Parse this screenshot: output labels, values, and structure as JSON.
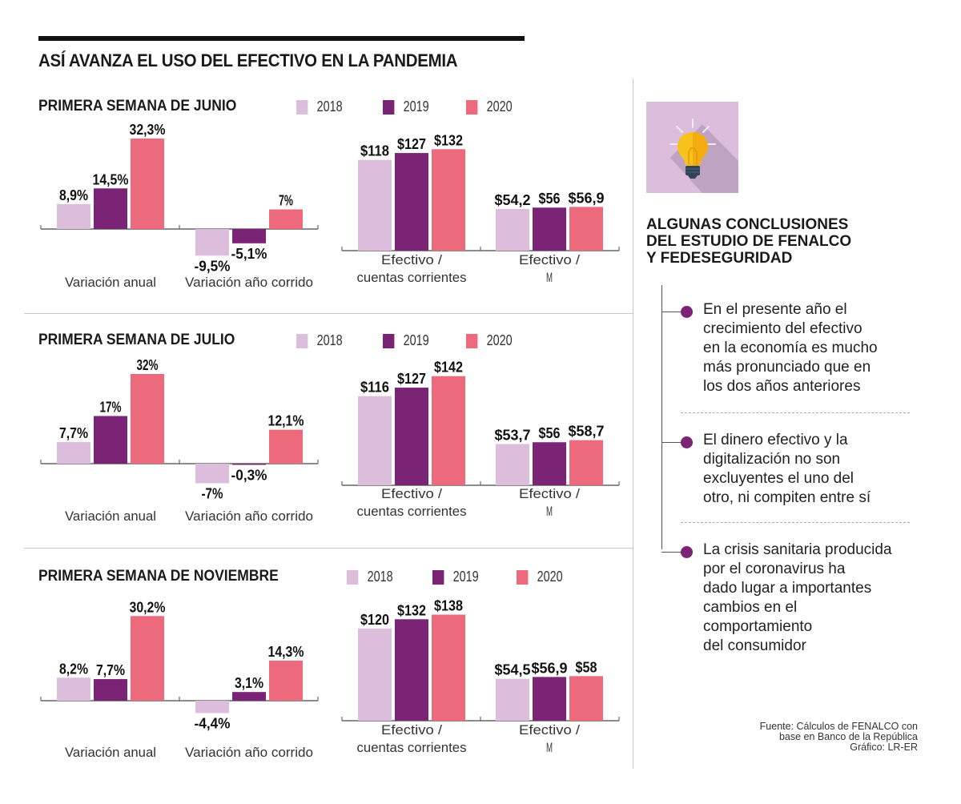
{
  "header": {
    "title": "ASÍ AVANZA EL USO DEL EFECTIVO EN LA PANDEMIA"
  },
  "legend": [
    {
      "label": "2018",
      "color": "#dcbedc"
    },
    {
      "label": "2019",
      "color": "#7b2475"
    },
    {
      "label": "2020",
      "color": "#ec6a7c"
    }
  ],
  "chart_data": [
    {
      "type": "bar",
      "title": "PRIMERA SEMANA DE JUNIO",
      "panels": [
        {
          "categories": [
            "Variación anual",
            "Variación año corrido"
          ],
          "series": [
            {
              "name": "2018",
              "values": [
                8.9,
                -9.5
              ],
              "labels": [
                "8,9%",
                "-9,5%"
              ]
            },
            {
              "name": "2019",
              "values": [
                14.5,
                -5.1
              ],
              "labels": [
                "14,5%",
                "-5,1%"
              ]
            },
            {
              "name": "2020",
              "values": [
                32.3,
                7
              ],
              "labels": [
                "32,3%",
                "7%"
              ]
            }
          ],
          "unit": "%"
        },
        {
          "categories": [
            "Efectivo / cuentas corrientes",
            "Efectivo / M"
          ],
          "category_lines": [
            [
              "Efectivo /",
              "cuentas corrientes"
            ],
            [
              "Efectivo /",
              "M"
            ]
          ],
          "series": [
            {
              "name": "2018",
              "values": [
                118,
                54.2
              ],
              "labels": [
                "$118",
                "$54,2"
              ]
            },
            {
              "name": "2019",
              "values": [
                127,
                56
              ],
              "labels": [
                "$127",
                "$56"
              ]
            },
            {
              "name": "2020",
              "values": [
                132,
                56.9
              ],
              "labels": [
                "$132",
                "$56,9"
              ]
            }
          ],
          "unit": "$"
        }
      ]
    },
    {
      "type": "bar",
      "title": "PRIMERA SEMANA DE JULIO",
      "panels": [
        {
          "categories": [
            "Variación anual",
            "Variación año corrido"
          ],
          "series": [
            {
              "name": "2018",
              "values": [
                7.7,
                -7
              ],
              "labels": [
                "7,7%",
                "-7%"
              ]
            },
            {
              "name": "2019",
              "values": [
                17,
                -0.3
              ],
              "labels": [
                "17%",
                "-0,3%"
              ]
            },
            {
              "name": "2020",
              "values": [
                32,
                12.1
              ],
              "labels": [
                "32%",
                "12,1%"
              ]
            }
          ],
          "unit": "%"
        },
        {
          "categories": [
            "Efectivo / cuentas corrientes",
            "Efectivo / M"
          ],
          "category_lines": [
            [
              "Efectivo /",
              "cuentas corrientes"
            ],
            [
              "Efectivo /",
              "M"
            ]
          ],
          "series": [
            {
              "name": "2018",
              "values": [
                116,
                53.7
              ],
              "labels": [
                "$116",
                "$53,7"
              ]
            },
            {
              "name": "2019",
              "values": [
                127,
                56
              ],
              "labels": [
                "$127",
                "$56"
              ]
            },
            {
              "name": "2020",
              "values": [
                142,
                58.7
              ],
              "labels": [
                "$142",
                "$58,7"
              ]
            }
          ],
          "unit": "$"
        }
      ]
    },
    {
      "type": "bar",
      "title": "PRIMERA SEMANA DE NOVIEMBRE",
      "panels": [
        {
          "categories": [
            "Variación anual",
            "Variación año corrido"
          ],
          "series": [
            {
              "name": "2018",
              "values": [
                8.2,
                -4.4
              ],
              "labels": [
                "8,2%",
                "-4,4%"
              ]
            },
            {
              "name": "2019",
              "values": [
                7.7,
                3.1
              ],
              "labels": [
                "7,7%",
                "3,1%"
              ]
            },
            {
              "name": "2020",
              "values": [
                30.2,
                14.3
              ],
              "labels": [
                "30,2%",
                "14,3%"
              ]
            }
          ],
          "unit": "%"
        },
        {
          "categories": [
            "Efectivo / cuentas corrientes",
            "Efectivo / M"
          ],
          "category_lines": [
            [
              "Efectivo /",
              "cuentas corrientes"
            ],
            [
              "Efectivo /",
              "M"
            ]
          ],
          "series": [
            {
              "name": "2018",
              "values": [
                120,
                54.5
              ],
              "labels": [
                "$120",
                "$54,5"
              ]
            },
            {
              "name": "2019",
              "values": [
                132,
                56.9
              ],
              "labels": [
                "$132",
                "$56,9"
              ]
            },
            {
              "name": "2020",
              "values": [
                138,
                58
              ],
              "labels": [
                "$138",
                "$58"
              ]
            }
          ],
          "unit": "$"
        }
      ]
    }
  ],
  "sidebar": {
    "icon": "lightbulb-icon",
    "title_lines": [
      "ALGUNAS CONCLUSIONES",
      "DEL ESTUDIO DE FENALCO",
      "Y FEDESEGURIDAD"
    ],
    "conclusions": [
      {
        "lines": [
          "En el presente año el",
          "crecimiento del efectivo",
          "en la economía es mucho",
          "más pronunciado que en",
          "los dos años anteriores"
        ]
      },
      {
        "lines": [
          "El dinero efectivo y la",
          "digitalización no son",
          "excluyentes el uno del",
          "otro, ni compiten entre sí"
        ]
      },
      {
        "lines": [
          "La crisis sanitaria producida",
          "por el coronavirus ha",
          "dado lugar a importantes",
          "cambios en el",
          "comportamiento",
          "del consumidor"
        ]
      }
    ],
    "source_lines": [
      "Fuente: Cálculos de FENALCO con",
      "base en Banco de la República",
      "Gráfico: LR-ER"
    ]
  }
}
